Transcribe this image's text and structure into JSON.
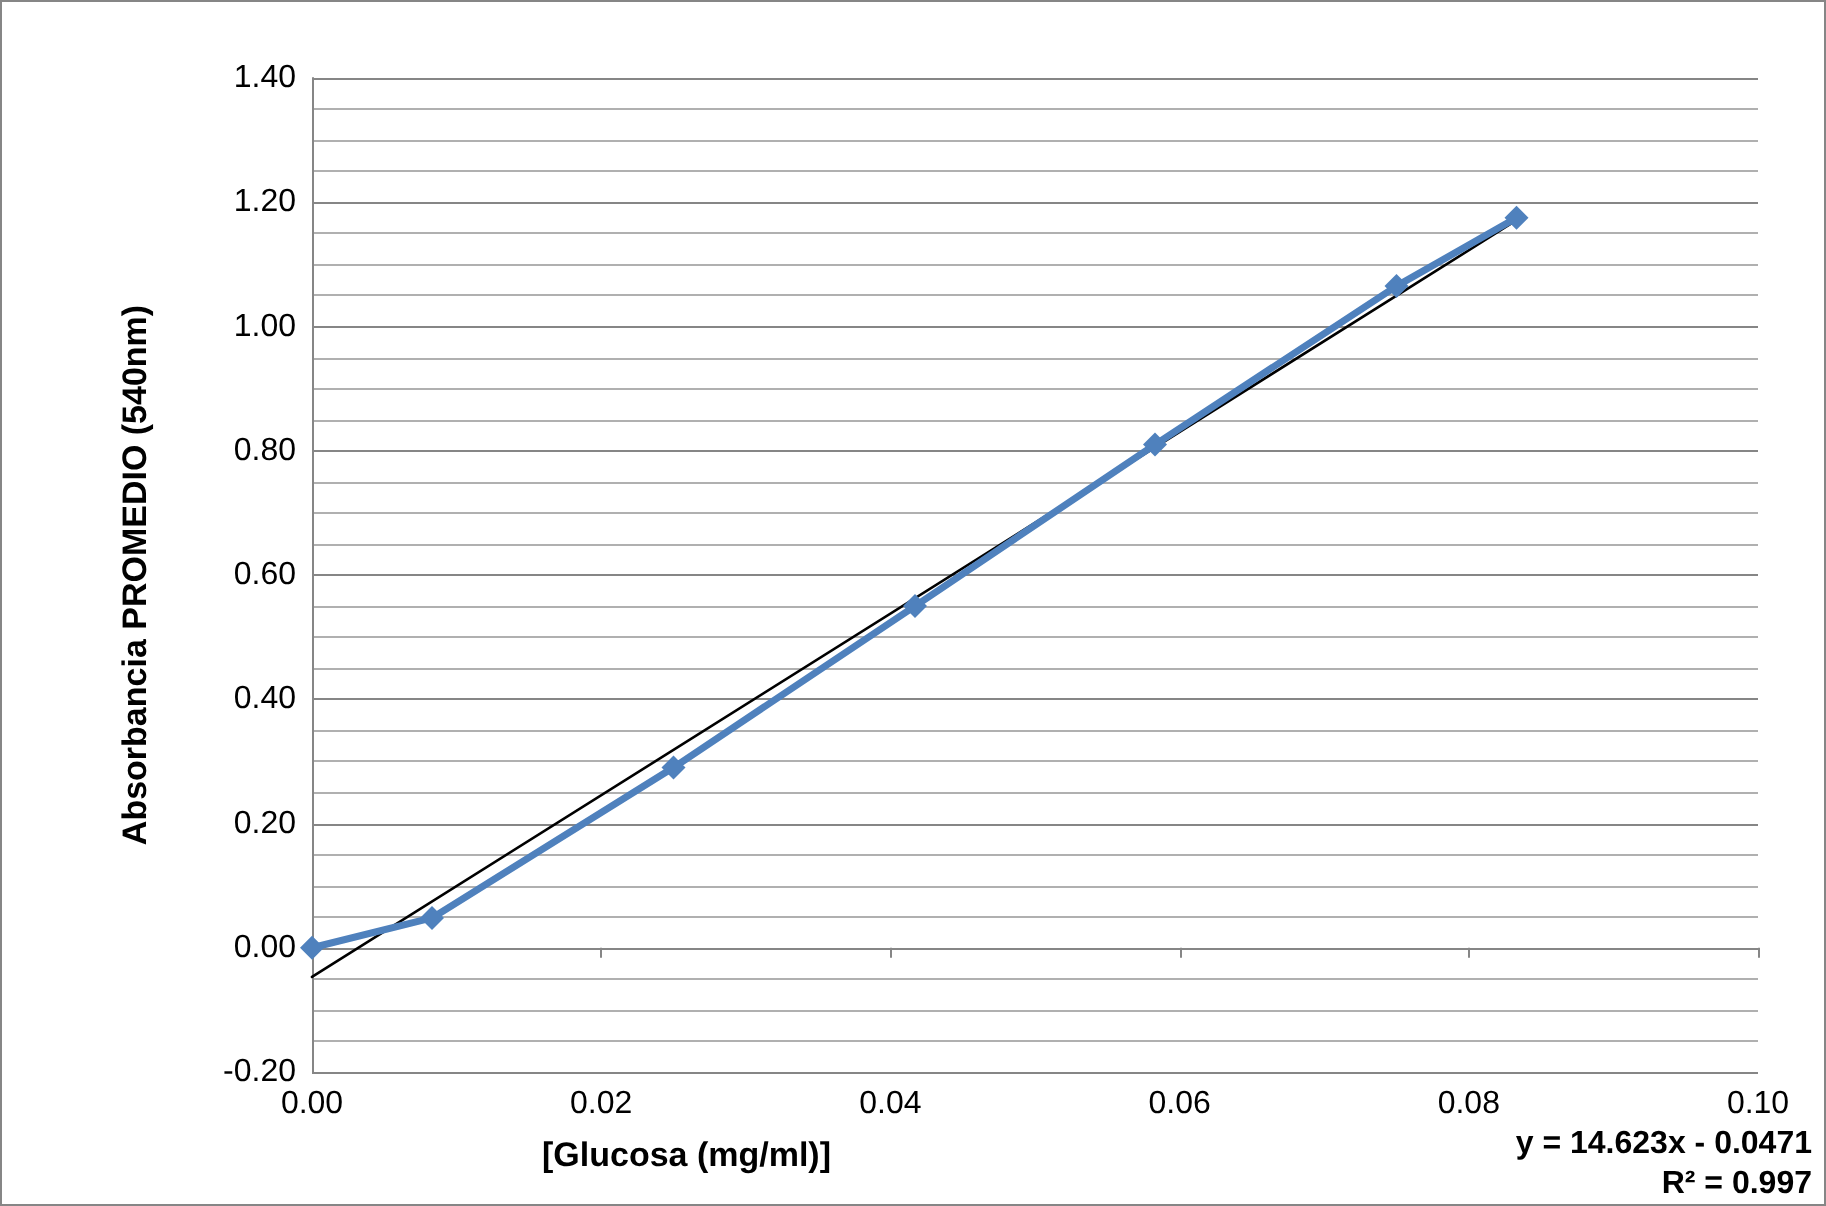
{
  "chart_data": {
    "type": "line",
    "ylabel": "Absorbancia PROMEDIO (540nm)",
    "xlim": [
      0,
      0.1
    ],
    "xticks": [
      {
        "value": 0,
        "label": "0.00"
      },
      {
        "value": 0.02,
        "label": "0.02"
      },
      {
        "value": 0.04,
        "label": "0.04"
      },
      {
        "value": 0.06,
        "label": "0.06"
      },
      {
        "value": 0.08,
        "label": "0.08"
      },
      {
        "value": 0.1,
        "label": "0.10"
      }
    ],
    "ylim": [
      -0.2,
      1.4
    ],
    "yticks": [
      {
        "value": -0.2,
        "label": "-0.20"
      },
      {
        "value": 0,
        "label": "0.00"
      },
      {
        "value": 0.2,
        "label": "0.20"
      },
      {
        "value": 0.4,
        "label": "0.40"
      },
      {
        "value": 0.6,
        "label": "0.60"
      },
      {
        "value": 0.8,
        "label": "0.80"
      },
      {
        "value": 1,
        "label": "1.00"
      },
      {
        "value": 1.2,
        "label": "1.20"
      },
      {
        "value": 1.4,
        "label": "1.40"
      }
    ],
    "grid": "y",
    "marker": "diamond",
    "series": [
      {
        "color": "#4f81bd",
        "x": [
          0,
          0.0083,
          0.025,
          0.0417,
          0.0583,
          0.075,
          0.0833
        ],
        "values": [
          0,
          0.048,
          0.29,
          0.55,
          0.81,
          1.065,
          1.175
        ]
      },
      {
        "type": "line",
        "marker": "none",
        "color": "#000000",
        "x": [
          0,
          0.0833
        ],
        "values": [
          -0.047,
          1.171
        ]
      }
    ],
    "annotations": [
      "[Glucosa (mg/ml)]",
      "y = 14.623x - 0.0471",
      "R² = 0.997"
    ]
  }
}
